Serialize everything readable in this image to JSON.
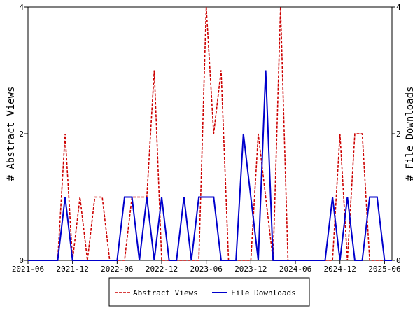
{
  "chart_data": {
    "type": "line",
    "x_ticks": [
      "2021-06",
      "2021-12",
      "2022-06",
      "2022-12",
      "2023-06",
      "2023-12",
      "2024-06",
      "2024-12",
      "2025-06"
    ],
    "x": [
      "2021-06",
      "2021-07",
      "2021-08",
      "2021-09",
      "2021-10",
      "2021-11",
      "2021-12",
      "2022-01",
      "2022-02",
      "2022-03",
      "2022-04",
      "2022-05",
      "2022-06",
      "2022-07",
      "2022-08",
      "2022-09",
      "2022-10",
      "2022-11",
      "2022-12",
      "2023-01",
      "2023-02",
      "2023-03",
      "2023-04",
      "2023-05",
      "2023-06",
      "2023-07",
      "2023-08",
      "2023-09",
      "2023-10",
      "2023-11",
      "2023-12",
      "2024-01",
      "2024-02",
      "2024-03",
      "2024-04",
      "2024-05",
      "2024-06",
      "2024-07",
      "2024-08",
      "2024-09",
      "2024-10",
      "2024-11",
      "2024-12",
      "2025-01",
      "2025-02",
      "2025-03",
      "2025-04",
      "2025-05",
      "2025-06",
      "2025-07"
    ],
    "series": [
      {
        "name": "Abstract Views",
        "color": "#cc0000",
        "style": "dashed",
        "axis": "left",
        "values": [
          0,
          0,
          0,
          0,
          0,
          2,
          0,
          1,
          0,
          1,
          1,
          0,
          0,
          0,
          1,
          1,
          1,
          3,
          0,
          0,
          0,
          0,
          0,
          0,
          4,
          2,
          3,
          0,
          0,
          0,
          0,
          2,
          1,
          0,
          4,
          0,
          0,
          0,
          0,
          0,
          0,
          0,
          2,
          0,
          2,
          2,
          0,
          0,
          0,
          0
        ]
      },
      {
        "name": "File Downloads",
        "color": "#0000cc",
        "style": "solid",
        "axis": "right",
        "values": [
          0,
          0,
          0,
          0,
          0,
          1,
          0,
          0,
          0,
          0,
          0,
          0,
          0,
          1,
          1,
          0,
          1,
          0,
          1,
          0,
          0,
          1,
          0,
          1,
          1,
          1,
          0,
          0,
          0,
          2,
          1,
          0,
          3,
          0,
          0,
          0,
          0,
          0,
          0,
          0,
          0,
          1,
          0,
          1,
          0,
          0,
          1,
          1,
          0,
          0
        ]
      }
    ],
    "y_left": {
      "label": "# Abstract Views",
      "range": [
        0,
        4
      ],
      "ticks": [
        "0",
        "2",
        "4"
      ]
    },
    "y_right": {
      "label": "# File Downloads",
      "range": [
        0,
        4
      ],
      "ticks": [
        "0",
        "2",
        "4"
      ]
    },
    "grid": false,
    "legend": {
      "placement": "bottom-center",
      "entries": [
        "Abstract Views",
        "File Downloads"
      ]
    }
  }
}
